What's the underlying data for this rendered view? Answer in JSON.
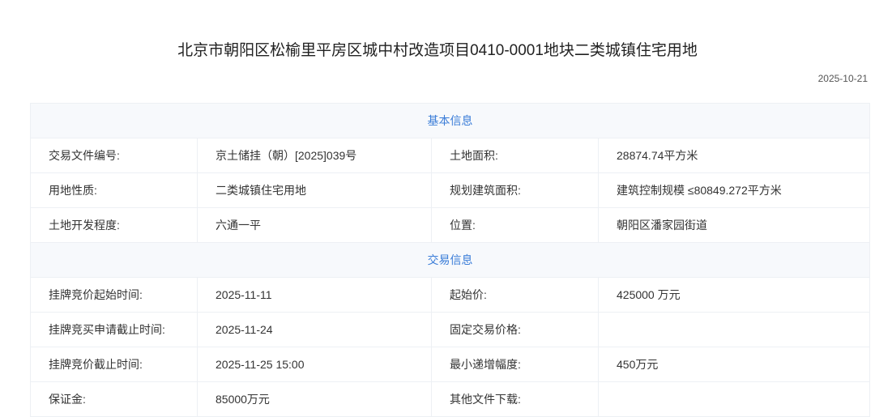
{
  "title": "北京市朝阳区松榆里平房区城中村改造项目0410-0001地块二类城镇住宅用地",
  "date": "2025-10-21",
  "sections": [
    {
      "heading": "基本信息",
      "rows": [
        [
          "交易文件编号:",
          "京土储挂（朝）[2025]039号",
          "土地面积:",
          "28874.74平方米"
        ],
        [
          "用地性质:",
          "二类城镇住宅用地",
          "规划建筑面积:",
          "建筑控制规模 ≤80849.272平方米"
        ],
        [
          "土地开发程度:",
          "六通一平",
          "位置:",
          "朝阳区潘家园街道"
        ]
      ]
    },
    {
      "heading": "交易信息",
      "rows": [
        [
          "挂牌竞价起始时间:",
          "2025-11-11",
          "起始价:",
          "425000 万元"
        ],
        [
          "挂牌竞买申请截止时间:",
          "2025-11-24",
          "固定交易价格:",
          ""
        ],
        [
          "挂牌竞价截止时间:",
          "2025-11-25 15:00",
          "最小递增幅度:",
          "450万元"
        ],
        [
          "保证金:",
          "85000万元",
          "其他文件下载:",
          ""
        ]
      ]
    }
  ],
  "colors": {
    "accent": "#3b7dd8",
    "section_bg": "#f7f9fc",
    "border": "#edf0f4"
  }
}
